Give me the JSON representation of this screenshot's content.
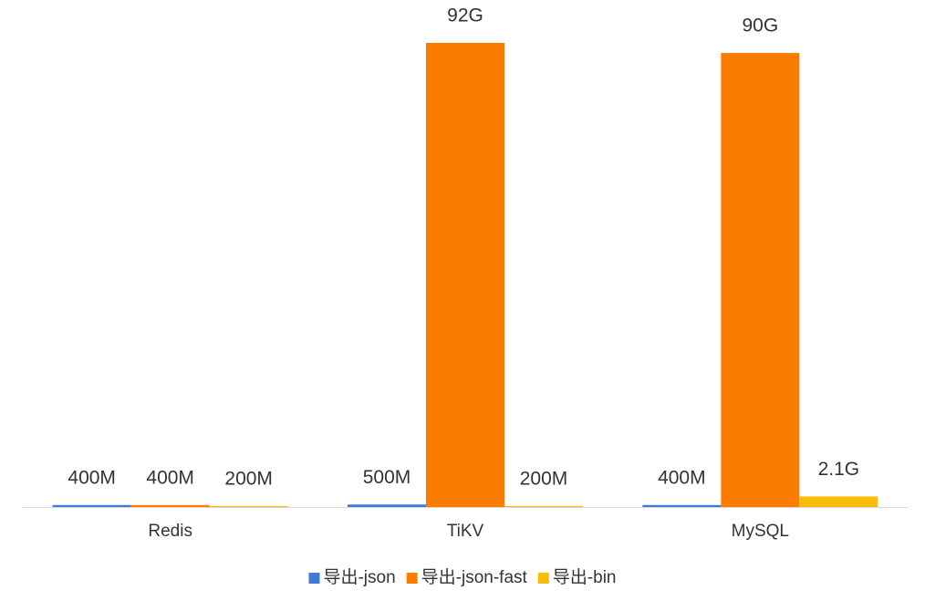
{
  "chart_data": {
    "type": "bar",
    "categories": [
      "Redis",
      "TiKV",
      "MySQL"
    ],
    "series": [
      {
        "name": "导出-json",
        "color": "#3d7bd6",
        "values": [
          0.4,
          0.5,
          0.4
        ],
        "value_labels": [
          "400M",
          "500M",
          "400M"
        ]
      },
      {
        "name": "导出-json-fast",
        "color": "#fa7d00",
        "values": [
          0.4,
          92,
          90
        ],
        "value_labels": [
          "400M",
          "92G",
          "90G"
        ]
      },
      {
        "name": "导出-bin",
        "color": "#f7bd0b",
        "values": [
          0.2,
          0.2,
          2.1
        ],
        "value_labels": [
          "200M",
          "200M",
          "2.1G"
        ]
      }
    ],
    "legend": "bottom"
  }
}
